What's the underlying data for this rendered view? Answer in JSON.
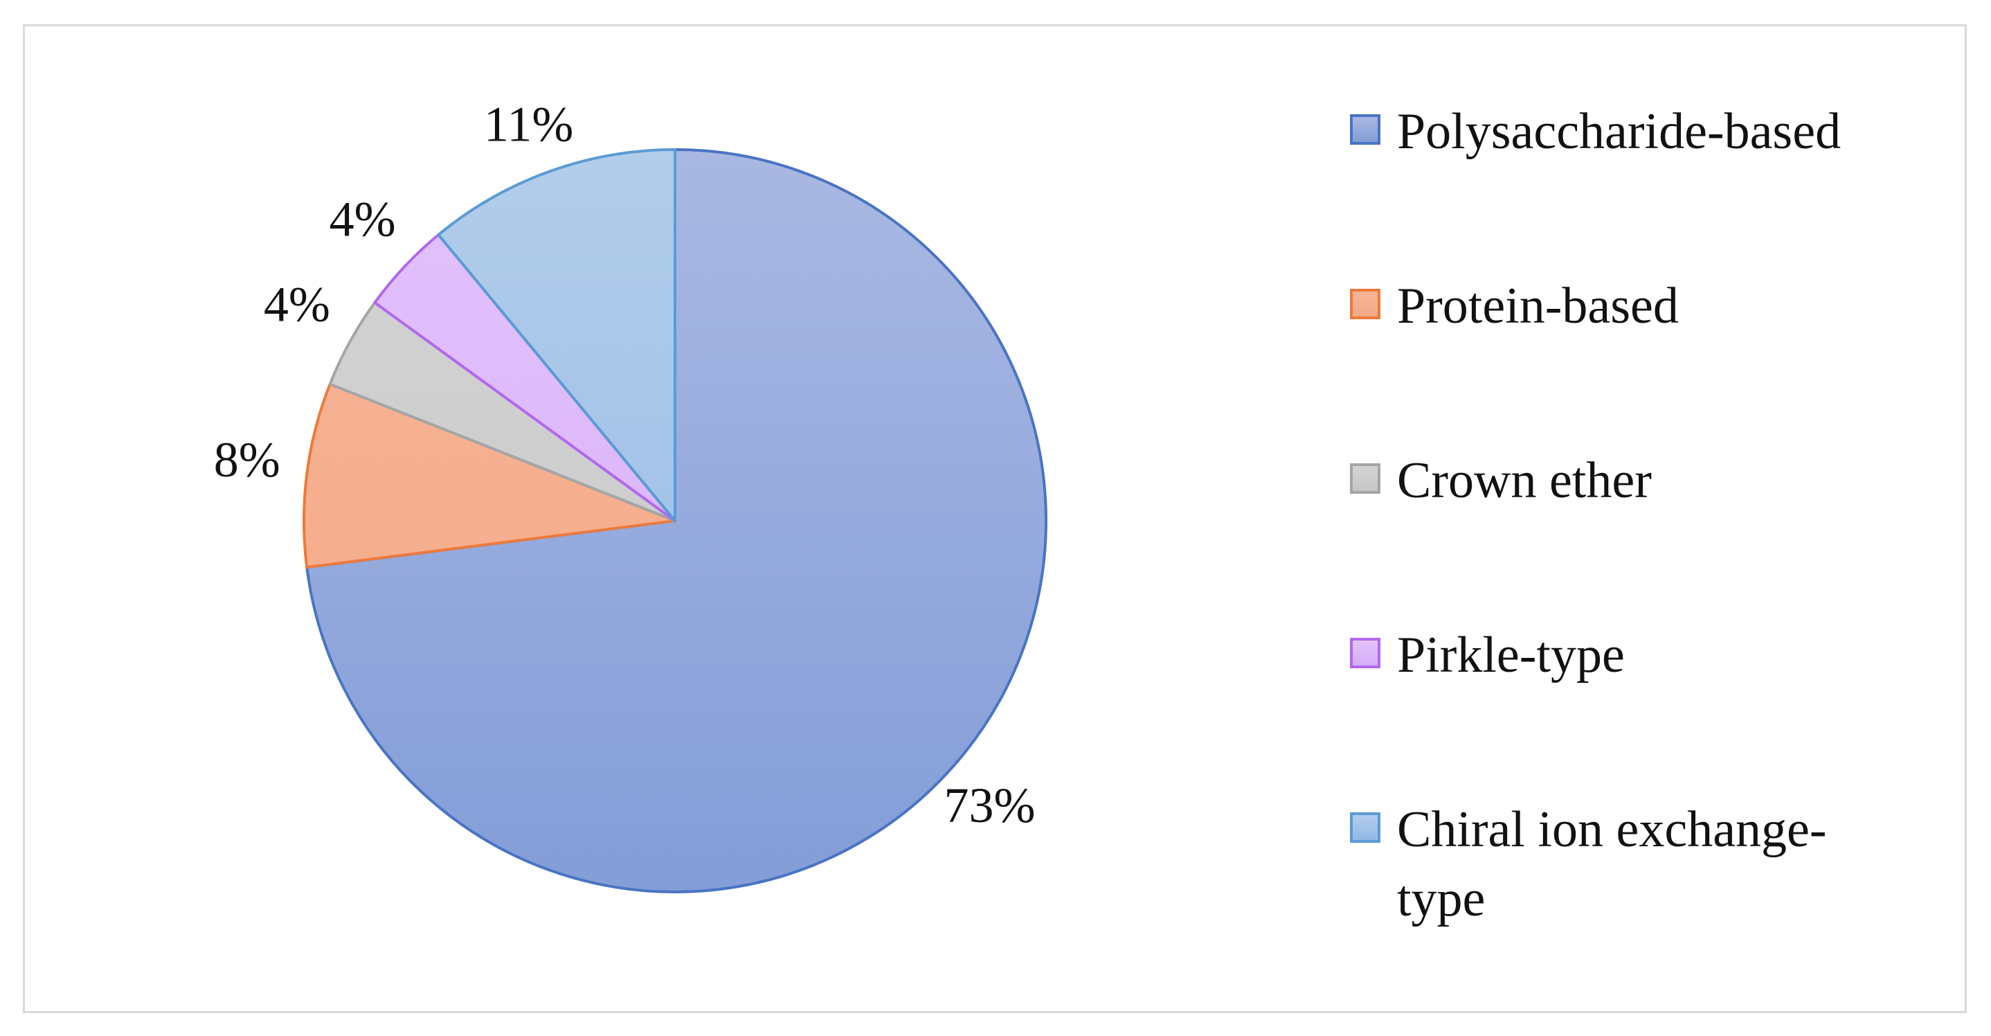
{
  "chart_data": {
    "type": "pie",
    "title": "",
    "slices": [
      {
        "label": "Polysaccharide-based",
        "value": 73,
        "display": "73%",
        "fill_top": "#a9b8e2",
        "fill_bottom": "#839dd8",
        "stroke": "#4a74c4"
      },
      {
        "label": "Protein-based",
        "value": 8,
        "display": "8%",
        "fill_top": "#f6b497",
        "fill_bottom": "#f4a986",
        "stroke": "#ec7a3c"
      },
      {
        "label": "Crown ether",
        "value": 4,
        "display": "4%",
        "fill_top": "#d4d4d4",
        "fill_bottom": "#c6c6c6",
        "stroke": "#a5a5a5"
      },
      {
        "label": "Pirkle-type",
        "value": 4,
        "display": "4%",
        "fill_top": "#e3c2fb",
        "fill_bottom": "#d6adfa",
        "stroke": "#b268f0"
      },
      {
        "label": "Chiral ion exchange-type",
        "value": 11,
        "display": "11%",
        "fill_top": "#b3cdea",
        "fill_bottom": "#93b8e6",
        "stroke": "#5b9bd5"
      }
    ],
    "legend_position": "right",
    "start_angle": "top",
    "direction": "clockwise"
  }
}
